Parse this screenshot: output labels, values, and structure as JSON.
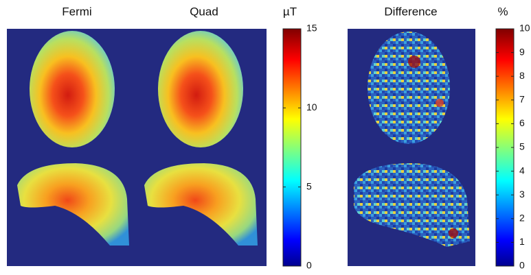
{
  "chart_data": [
    {
      "type": "heatmap",
      "title": "Fermi"
    },
    {
      "type": "heatmap",
      "title": "Quad",
      "colormap": "jet",
      "clabel": "µT",
      "clim": [
        0,
        15
      ],
      "cticks": [
        0,
        5,
        10,
        15
      ]
    },
    {
      "type": "heatmap",
      "title": "Difference",
      "colormap": "jet",
      "clabel": "%",
      "clim": [
        0,
        10
      ],
      "cticks": [
        0,
        1,
        2,
        3,
        4,
        5,
        6,
        7,
        8,
        9,
        10
      ]
    }
  ]
}
